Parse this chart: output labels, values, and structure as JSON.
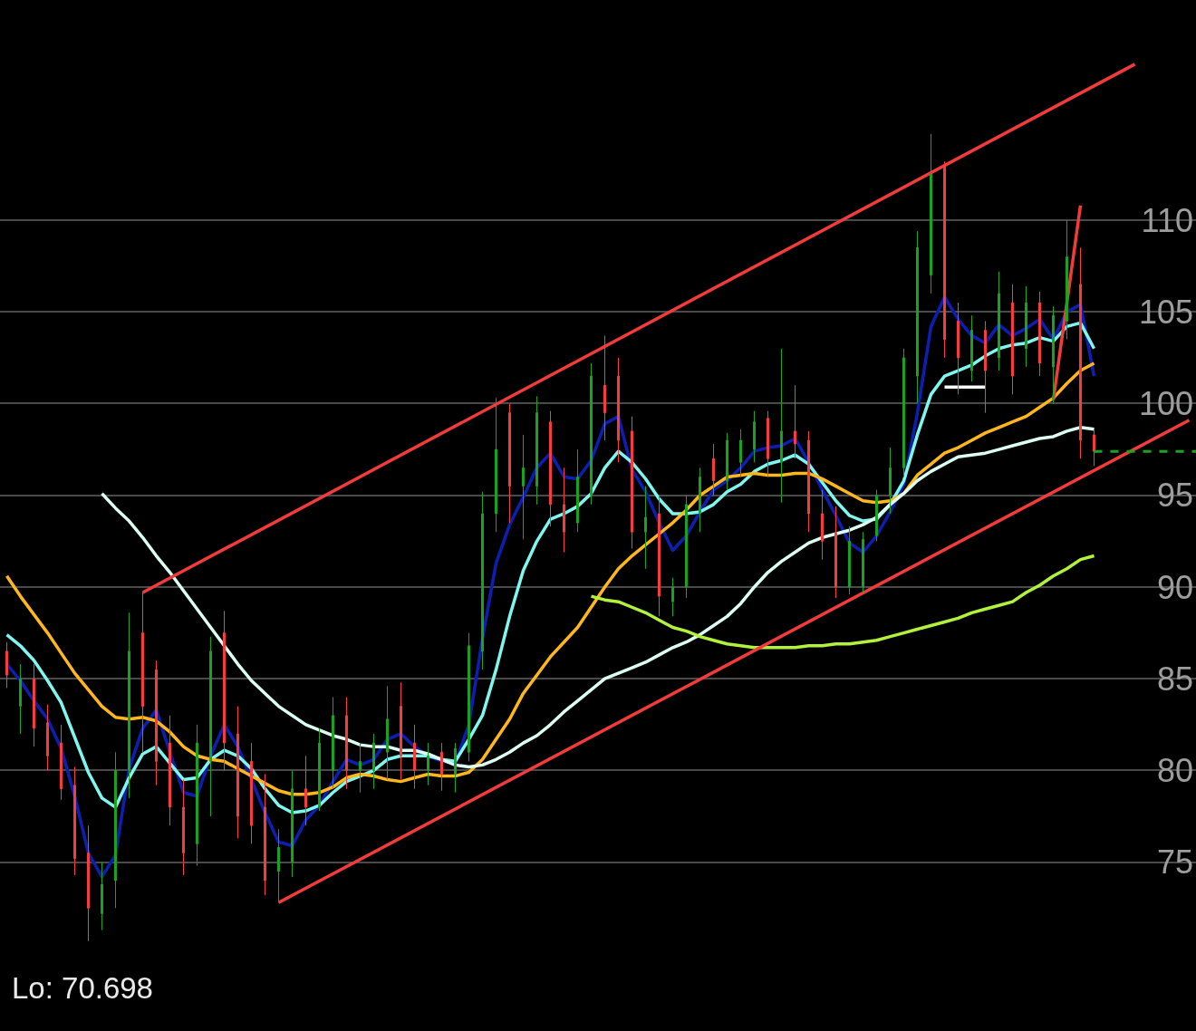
{
  "chart_data": {
    "type": "candlestick",
    "categories": [
      null,
      null,
      null,
      null,
      null,
      null,
      null,
      null,
      null,
      null,
      null,
      null,
      null,
      null,
      null,
      null,
      null,
      null,
      null,
      null,
      null,
      null,
      null,
      null,
      null,
      null,
      null,
      null,
      null,
      null,
      null,
      null,
      null,
      null,
      null,
      null,
      null,
      null,
      null,
      null,
      null,
      null,
      null,
      null,
      null,
      null,
      null,
      null,
      null,
      null,
      null,
      null,
      null,
      null,
      null,
      null,
      null,
      null,
      null,
      null,
      null,
      null,
      null,
      null,
      null,
      null,
      null,
      null,
      null,
      null,
      null,
      null,
      null,
      null,
      null,
      null,
      null,
      null,
      null,
      null,
      null,
      null,
      null,
      null,
      null,
      null,
      null,
      null
    ],
    "ohlc": [
      [
        86.5,
        87.0,
        84.5,
        85.2
      ],
      [
        83.5,
        85.8,
        82.0,
        85.0
      ],
      [
        85.0,
        85.8,
        81.3,
        82.3
      ],
      [
        82.6,
        83.6,
        80.0,
        80.8
      ],
      [
        81.5,
        82.5,
        78.4,
        79.0
      ],
      [
        79.2,
        80.2,
        74.3,
        75.2
      ],
      [
        75.5,
        77.0,
        70.7,
        72.5
      ],
      [
        72.2,
        75.0,
        71.3,
        73.8
      ],
      [
        74.0,
        81.0,
        72.5,
        80.0
      ],
      [
        80.0,
        88.6,
        78.5,
        86.5
      ],
      [
        87.5,
        89.7,
        81.0,
        83.5
      ],
      [
        85.5,
        86.0,
        79.2,
        80.5
      ],
      [
        81.5,
        83.0,
        77.0,
        78.0
      ],
      [
        78.0,
        79.5,
        74.3,
        75.5
      ],
      [
        76.0,
        82.5,
        74.8,
        81.5
      ],
      [
        80.5,
        87.3,
        77.5,
        86.5
      ],
      [
        87.5,
        88.7,
        80.0,
        81.5
      ],
      [
        82.0,
        83.5,
        76.3,
        77.5
      ],
      [
        80.5,
        81.5,
        76.0,
        77.0
      ],
      [
        78.0,
        79.8,
        73.2,
        74.0
      ],
      [
        74.5,
        76.8,
        72.8,
        75.8
      ],
      [
        75.0,
        80.0,
        74.2,
        79.0
      ],
      [
        79.0,
        80.8,
        77.0,
        78.0
      ],
      [
        78.0,
        82.3,
        77.8,
        81.5
      ],
      [
        80.0,
        84.0,
        79.0,
        83.0
      ],
      [
        83.0,
        84.0,
        79.0,
        80.0
      ],
      [
        80.0,
        81.5,
        78.8,
        80.5
      ],
      [
        80.0,
        82.0,
        79.0,
        81.5
      ],
      [
        81.0,
        84.6,
        79.5,
        82.8
      ],
      [
        83.5,
        84.8,
        79.5,
        80.8
      ],
      [
        81.5,
        82.5,
        79.0,
        80.0
      ],
      [
        80.0,
        81.5,
        79.2,
        80.8
      ],
      [
        81.0,
        81.5,
        78.9,
        79.8
      ],
      [
        79.8,
        81.5,
        78.8,
        81.2
      ],
      [
        81.0,
        87.5,
        80.5,
        86.8
      ],
      [
        86.5,
        95.2,
        85.5,
        94.0
      ],
      [
        94.0,
        100.3,
        93.0,
        97.5
      ],
      [
        99.5,
        100.0,
        93.5,
        95.5
      ],
      [
        95.5,
        98.3,
        92.6,
        96.5
      ],
      [
        95.5,
        100.4,
        94.5,
        99.5
      ],
      [
        99.0,
        99.6,
        93.3,
        94.5
      ],
      [
        94.5,
        96.5,
        91.9,
        93.0
      ],
      [
        93.5,
        97.5,
        93.0,
        96.0
      ],
      [
        95.0,
        102.2,
        94.5,
        101.5
      ],
      [
        101.0,
        103.7,
        98.0,
        99.5
      ],
      [
        101.5,
        102.5,
        96.8,
        98.0
      ],
      [
        98.5,
        99.3,
        92.1,
        93.0
      ],
      [
        93.0,
        95.5,
        91.0,
        93.8
      ],
      [
        94.0,
        95.0,
        88.4,
        89.5
      ],
      [
        89.2,
        90.5,
        88.4,
        90.0
      ],
      [
        90.0,
        95.0,
        89.4,
        94.5
      ],
      [
        94.0,
        96.5,
        93.0,
        96.0
      ],
      [
        97.0,
        97.8,
        95.0,
        95.8
      ],
      [
        95.8,
        98.4,
        95.3,
        98.0
      ],
      [
        96.8,
        98.6,
        96.0,
        98.0
      ],
      [
        97.5,
        99.6,
        96.8,
        99.0
      ],
      [
        99.2,
        99.6,
        96.0,
        97.0
      ],
      [
        96.8,
        103.0,
        94.6,
        98.5
      ],
      [
        98.5,
        101.0,
        97.0,
        97.8
      ],
      [
        98.0,
        98.5,
        93.0,
        94.0
      ],
      [
        94.0,
        95.3,
        91.5,
        92.5
      ],
      [
        93.0,
        94.4,
        89.4,
        90.0
      ],
      [
        90.0,
        93.3,
        89.6,
        92.5
      ],
      [
        90.0,
        93.0,
        89.7,
        92.6
      ],
      [
        92.8,
        95.3,
        92.5,
        95.0
      ],
      [
        95.0,
        97.6,
        94.0,
        96.5
      ],
      [
        96.5,
        103.0,
        96.0,
        102.5
      ],
      [
        101.5,
        109.4,
        100.0,
        108.5
      ],
      [
        107.0,
        114.7,
        106.0,
        112.5
      ],
      [
        113.0,
        113.2,
        102.5,
        103.5
      ],
      [
        104.5,
        105.5,
        100.5,
        102.5
      ],
      [
        101.8,
        104.8,
        101.2,
        104.0
      ],
      [
        104.0,
        104.5,
        99.5,
        101.8
      ],
      [
        102.5,
        107.2,
        101.8,
        106.0
      ],
      [
        105.5,
        106.5,
        100.5,
        101.5
      ],
      [
        103.0,
        106.4,
        102.0,
        105.5
      ],
      [
        105.5,
        106.1,
        101.5,
        102.2
      ],
      [
        102.0,
        105.3,
        100.0,
        104.8
      ],
      [
        104.5,
        110.0,
        103.5,
        108.0
      ],
      [
        106.5,
        108.5,
        97.0,
        98.0
      ],
      [
        98.3,
        98.6,
        96.6,
        97.4
      ],
      null,
      null,
      null,
      null,
      null,
      null,
      null
    ],
    "colors": [
      "#fc3d3d",
      "#1ba51f",
      "#fc3d3d",
      "#fc3d3d",
      "#fc3d3d",
      "#fc3d3d",
      "#fc3d3d",
      "#1ba51f",
      "#1ba51f",
      "#1ba51f",
      "#fc3d3d",
      "#fc3d3d",
      "#fc3d3d",
      "#fc3d3d",
      "#1ba51f",
      "#1ba51f",
      "#fc3d3d",
      "#fc3d3d",
      "#fc3d3d",
      "#fc3d3d",
      "#1ba51f",
      "#1ba51f",
      "#fc3d3d",
      "#1ba51f",
      "#1ba51f",
      "#fc3d3d",
      "#1ba51f",
      "#1ba51f",
      "#1ba51f",
      "#fc3d3d",
      "#fc3d3d",
      "#1ba51f",
      "#fc3d3d",
      "#1ba51f",
      "#1ba51f",
      "#1ba51f",
      "#1ba51f",
      "#fc3d3d",
      "#1ba51f",
      "#1ba51f",
      "#fc3d3d",
      "#fc3d3d",
      "#1ba51f",
      "#1ba51f",
      "#fc3d3d",
      "#fc3d3d",
      "#fc3d3d",
      "#1ba51f",
      "#fc3d3d",
      "#1ba51f",
      "#1ba51f",
      "#1ba51f",
      "#fc3d3d",
      "#1ba51f",
      "#1ba51f",
      "#1ba51f",
      "#fc3d3d",
      "#1ba51f",
      "#fc3d3d",
      "#fc3d3d",
      "#fc3d3d",
      "#fc3d3d",
      "#1ba51f",
      "#1ba51f",
      "#1ba51f",
      "#1ba51f",
      "#1ba51f",
      "#1ba51f",
      "#1ba51f",
      "#fc3d3d",
      "#fc3d3d",
      "#1ba51f",
      "#fc3d3d",
      "#1ba51f",
      "#fc3d3d",
      "#1ba51f",
      "#fc3d3d",
      "#1ba51f",
      "#1ba51f",
      "#fc3d3d",
      "#fc3d3d",
      null,
      null,
      null,
      null,
      null,
      null,
      null
    ],
    "series": [
      {
        "type": "line",
        "color": "#0c1fb0",
        "values": [
          85.8,
          84.9,
          83.8,
          82.8,
          81.2,
          78.6,
          75.5,
          74.2,
          75.4,
          80.1,
          82.3,
          83.3,
          81.0,
          78.8,
          78.6,
          80.8,
          82.5,
          81.3,
          79.5,
          77.7,
          76.1,
          75.9,
          77.3,
          78.1,
          79.4,
          80.6,
          80.3,
          80.6,
          81.7,
          82.0,
          81.3,
          80.8,
          80.5,
          80.4,
          82.5,
          87.2,
          91.3,
          93.4,
          94.9,
          96.5,
          97.3,
          96.0,
          95.9,
          96.9,
          98.9,
          99.3,
          96.4,
          95.2,
          93.5,
          92.0,
          92.8,
          94.1,
          95.3,
          95.8,
          96.5,
          97.4,
          97.6,
          97.7,
          98.1,
          96.8,
          95.3,
          93.9,
          92.4,
          91.9,
          92.8,
          94.1,
          95.6,
          99.5,
          104.2,
          105.8,
          104.6,
          103.7,
          103.3,
          104.3,
          103.7,
          104.1,
          104.6,
          103.5,
          105.0,
          105.4,
          101.5,
          null,
          null,
          null,
          null,
          null,
          null,
          null
        ]
      },
      {
        "type": "line",
        "color": "#7ff6ee",
        "values": [
          87.4,
          86.8,
          86.0,
          84.9,
          83.7,
          81.8,
          79.9,
          78.5,
          78.0,
          79.6,
          80.9,
          81.3,
          80.4,
          79.5,
          79.6,
          80.6,
          81.1,
          80.8,
          80.1,
          79.0,
          78.1,
          77.7,
          77.8,
          78.1,
          78.8,
          79.4,
          79.7,
          80.0,
          80.6,
          80.8,
          80.8,
          80.8,
          80.6,
          80.5,
          81.7,
          83.0,
          85.5,
          88.4,
          90.9,
          92.5,
          93.7,
          94.0,
          94.4,
          95.1,
          96.5,
          97.4,
          96.8,
          95.9,
          94.8,
          94.0,
          94.0,
          94.1,
          94.5,
          95.2,
          95.6,
          96.3,
          96.7,
          96.9,
          97.2,
          96.7,
          95.7,
          94.7,
          93.9,
          93.6,
          93.7,
          94.5,
          95.8,
          98.3,
          100.5,
          101.5,
          101.8,
          102.1,
          102.6,
          103.0,
          103.2,
          103.3,
          103.6,
          103.4,
          104.2,
          104.4,
          103.0,
          null,
          null,
          null,
          null,
          null,
          null,
          null
        ]
      },
      {
        "type": "line",
        "color": "#ffb71c",
        "values": [
          90.6,
          89.5,
          88.5,
          87.5,
          86.4,
          85.3,
          84.4,
          83.5,
          82.9,
          82.8,
          82.9,
          82.7,
          82.1,
          81.3,
          80.8,
          80.6,
          80.5,
          80.1,
          79.7,
          79.3,
          78.9,
          78.7,
          78.7,
          78.8,
          79.1,
          79.6,
          79.8,
          79.7,
          79.5,
          79.4,
          79.6,
          79.8,
          79.7,
          79.7,
          79.9,
          80.6,
          81.7,
          82.8,
          84.2,
          85.2,
          86.2,
          87.0,
          87.8,
          88.9,
          90.0,
          91.0,
          91.7,
          92.3,
          92.9,
          93.5,
          94.2,
          95.0,
          95.5,
          96.0,
          96.1,
          96.2,
          96.1,
          96.1,
          96.2,
          96.2,
          95.9,
          95.5,
          95.1,
          94.7,
          94.6,
          94.7,
          95.1,
          96.1,
          96.7,
          97.3,
          97.6,
          98.0,
          98.4,
          98.7,
          99.0,
          99.3,
          99.8,
          100.3,
          101.1,
          101.8,
          102.2,
          null,
          null,
          null,
          null,
          null,
          null,
          null
        ]
      },
      {
        "type": "line",
        "color": "#dcfff3",
        "values": [
          null,
          null,
          null,
          null,
          null,
          null,
          null,
          95.1,
          94.3,
          93.6,
          92.7,
          91.7,
          90.8,
          89.8,
          88.8,
          87.8,
          86.8,
          85.8,
          84.9,
          84.2,
          83.5,
          83.0,
          82.5,
          82.2,
          81.9,
          81.7,
          81.4,
          81.3,
          81.3,
          81.1,
          81.1,
          80.9,
          80.6,
          80.3,
          80.2,
          80.3,
          80.6,
          81.0,
          81.5,
          81.9,
          82.5,
          83.2,
          83.8,
          84.4,
          85.0,
          85.3,
          85.6,
          85.9,
          86.3,
          86.7,
          87.0,
          87.4,
          87.9,
          88.4,
          89.1,
          90.0,
          90.8,
          91.4,
          91.9,
          92.4,
          92.7,
          92.9,
          93.1,
          93.4,
          93.8,
          94.5,
          95.1,
          95.8,
          96.3,
          96.7,
          97.1,
          97.2,
          97.3,
          97.5,
          97.7,
          97.9,
          98.1,
          98.2,
          98.5,
          98.7,
          98.6,
          null,
          null,
          null,
          null,
          null,
          null,
          null
        ]
      },
      {
        "type": "line",
        "color": "#b2f23a",
        "values": [
          null,
          null,
          null,
          null,
          null,
          null,
          null,
          null,
          null,
          null,
          null,
          null,
          null,
          null,
          null,
          null,
          null,
          null,
          null,
          null,
          null,
          null,
          null,
          null,
          null,
          null,
          null,
          null,
          null,
          null,
          null,
          null,
          null,
          null,
          null,
          null,
          null,
          null,
          null,
          null,
          null,
          null,
          null,
          89.5,
          89.3,
          89.2,
          88.9,
          88.6,
          88.2,
          87.8,
          87.6,
          87.3,
          87.1,
          86.9,
          86.8,
          86.7,
          86.7,
          86.7,
          86.7,
          86.8,
          86.8,
          86.9,
          86.9,
          87.0,
          87.1,
          87.3,
          87.5,
          87.7,
          87.9,
          88.1,
          88.3,
          88.6,
          88.8,
          89.0,
          89.2,
          89.7,
          90.1,
          90.6,
          91.0,
          91.5,
          91.7,
          null,
          null,
          null,
          null,
          null,
          null,
          null
        ]
      },
      {
        "type": "line",
        "color": "#f23b3b",
        "values": [
          null,
          null,
          null,
          null,
          null,
          null,
          null,
          null,
          null,
          null,
          89.7,
          null,
          null,
          null,
          null,
          null,
          null,
          null,
          null,
          null,
          null,
          null,
          null,
          null,
          null,
          null,
          null,
          null,
          null,
          null,
          null,
          null,
          null,
          null,
          null,
          null,
          null,
          null,
          null,
          null,
          null,
          null,
          null,
          null,
          null,
          null,
          null,
          null,
          null,
          null,
          null,
          null,
          null,
          null,
          null,
          null,
          null,
          null,
          null,
          null,
          null,
          null,
          null,
          null,
          null,
          null,
          null,
          null,
          null,
          null,
          null,
          null,
          null,
          null,
          null,
          null,
          null,
          null,
          null,
          null,
          null,
          null,
          null,
          118.5,
          null,
          null,
          null,
          null
        ]
      },
      {
        "type": "line",
        "color": "#f23b3b",
        "values": [
          null,
          null,
          null,
          null,
          null,
          null,
          null,
          null,
          null,
          null,
          null,
          null,
          null,
          null,
          null,
          null,
          null,
          null,
          null,
          null,
          72.8,
          null,
          null,
          null,
          null,
          null,
          null,
          null,
          null,
          null,
          null,
          null,
          null,
          null,
          null,
          null,
          null,
          null,
          null,
          null,
          null,
          null,
          null,
          null,
          null,
          null,
          null,
          null,
          null,
          null,
          null,
          null,
          null,
          null,
          null,
          null,
          null,
          null,
          null,
          null,
          null,
          null,
          null,
          null,
          null,
          null,
          null,
          null,
          null,
          null,
          null,
          null,
          null,
          null,
          null,
          null,
          null,
          null,
          null,
          null,
          null,
          null,
          null,
          null,
          null,
          null,
          null,
          99.1
        ]
      },
      {
        "type": "line",
        "color": "#f23b3b",
        "values": [
          null,
          null,
          null,
          null,
          null,
          null,
          null,
          null,
          null,
          null,
          null,
          null,
          null,
          null,
          null,
          null,
          null,
          null,
          null,
          null,
          null,
          null,
          null,
          null,
          null,
          null,
          null,
          null,
          null,
          null,
          null,
          null,
          null,
          null,
          null,
          null,
          null,
          null,
          null,
          null,
          null,
          null,
          null,
          null,
          null,
          null,
          null,
          null,
          null,
          null,
          null,
          null,
          null,
          null,
          null,
          null,
          null,
          null,
          null,
          null,
          null,
          null,
          null,
          null,
          null,
          null,
          null,
          null,
          null,
          null,
          null,
          null,
          null,
          null,
          null,
          null,
          null,
          100.2,
          null,
          110.8,
          null,
          null,
          null,
          null,
          null,
          null,
          null,
          null
        ]
      },
      {
        "type": "line",
        "color": "#ffffff",
        "values": [
          null,
          null,
          null,
          null,
          null,
          null,
          null,
          null,
          null,
          null,
          null,
          null,
          null,
          null,
          null,
          null,
          null,
          null,
          null,
          null,
          null,
          null,
          null,
          null,
          null,
          null,
          null,
          null,
          null,
          null,
          null,
          null,
          null,
          null,
          null,
          null,
          null,
          null,
          null,
          null,
          null,
          null,
          null,
          null,
          null,
          null,
          null,
          null,
          null,
          null,
          null,
          null,
          null,
          null,
          null,
          null,
          null,
          null,
          null,
          null,
          null,
          null,
          null,
          null,
          null,
          null,
          null,
          null,
          null,
          100.9,
          100.9,
          100.9,
          100.9,
          null,
          null,
          null,
          null,
          null,
          null,
          null,
          null,
          null,
          null,
          null,
          null,
          null,
          null,
          null
        ]
      }
    ],
    "ylim": [
      65.8,
      122.0
    ],
    "yticks": [
      75,
      80,
      85,
      90,
      95,
      100,
      105,
      110
    ],
    "grid": "y",
    "tick_labels": "y",
    "ref_lines": [
      {
        "axis": "y",
        "value": 97.4,
        "color": "#1ba51f",
        "line_style": "dashed"
      }
    ],
    "annotations": [
      "Lo: 70.698"
    ]
  }
}
